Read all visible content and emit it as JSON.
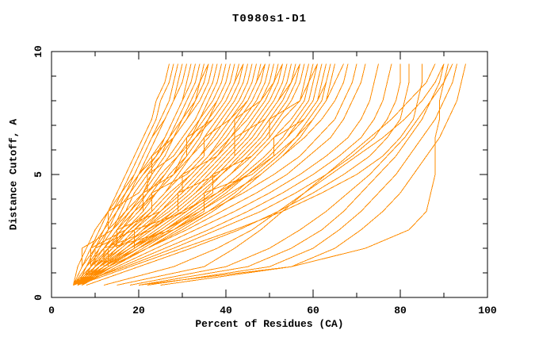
{
  "chart_data": {
    "type": "line",
    "title": "T0980s1-D1",
    "xlabel": "Percent of Residues (CA)",
    "ylabel": "Distance Cutoff, A",
    "xlim": [
      0,
      100
    ],
    "ylim": [
      0,
      10
    ],
    "grid": false,
    "legend": "none",
    "x_major_ticks": [
      0,
      20,
      40,
      60,
      80,
      100
    ],
    "x_minor_ticks": [
      10,
      30,
      50,
      70,
      90
    ],
    "y_major_ticks": [
      0,
      5,
      10
    ],
    "y_minor_ticks": [
      1,
      2,
      3,
      4,
      6,
      7,
      8,
      9
    ],
    "line_color": "#FF8C00",
    "axis_color": "#000000",
    "series_note": "Each series is one structure model; x = percent of CA residues fitting under each distance cutoff (cutoffs array = y values in Angstroms).",
    "cutoffs": [
      0.5,
      1.25,
      2.0,
      2.75,
      3.5,
      4.25,
      5.0,
      5.75,
      6.5,
      7.25,
      8.0,
      8.75,
      9.5
    ],
    "series": [
      [
        5,
        7,
        9,
        11,
        13,
        15,
        17,
        19,
        21,
        23,
        24,
        26,
        27
      ],
      [
        5,
        6,
        8,
        10,
        13,
        16,
        18,
        20,
        22,
        24,
        25,
        27,
        28
      ],
      [
        6,
        8,
        10,
        12,
        14,
        16,
        19,
        21,
        23,
        25,
        27,
        28,
        29
      ],
      [
        5,
        7,
        10,
        12,
        15,
        17,
        19,
        21,
        23,
        26,
        28,
        29,
        30
      ],
      [
        5,
        8,
        11,
        13,
        15,
        17,
        20,
        22,
        24,
        26,
        28,
        30,
        31
      ],
      [
        6,
        9,
        11,
        14,
        16,
        18,
        20,
        23,
        26,
        28,
        30,
        31,
        32
      ],
      [
        5,
        7,
        9,
        12,
        15,
        18,
        21,
        24,
        26,
        28,
        30,
        32,
        33
      ],
      [
        6,
        8,
        11,
        14,
        17,
        19,
        22,
        25,
        27,
        29,
        31,
        33,
        34
      ],
      [
        5,
        7,
        9,
        12,
        14,
        17,
        20,
        24,
        27,
        30,
        32,
        34,
        35
      ],
      [
        6,
        8,
        11,
        13,
        13,
        20,
        23,
        23,
        28,
        30,
        33,
        35,
        36
      ],
      [
        5,
        8,
        10,
        13,
        17,
        21,
        23,
        26,
        28,
        31,
        34,
        36,
        37
      ],
      [
        6,
        9,
        12,
        15,
        18,
        21,
        24,
        27,
        30,
        33,
        35,
        37,
        38
      ],
      [
        5,
        7,
        7,
        14,
        18,
        22,
        22,
        28,
        31,
        34,
        36,
        38,
        39
      ],
      [
        6,
        9,
        13,
        16,
        19,
        22,
        26,
        29,
        32,
        34,
        37,
        39,
        40
      ],
      [
        5,
        8,
        12,
        16,
        20,
        23,
        26,
        29,
        32,
        35,
        38,
        40,
        41
      ],
      [
        7,
        10,
        13,
        17,
        21,
        24,
        27,
        31,
        34,
        36,
        39,
        41,
        42
      ],
      [
        5,
        9,
        9,
        17,
        21,
        21,
        28,
        31,
        31,
        37,
        40,
        42,
        43
      ],
      [
        6,
        10,
        14,
        18,
        22,
        26,
        29,
        32,
        35,
        38,
        41,
        43,
        44
      ],
      [
        5,
        8,
        12,
        16,
        20,
        24,
        28,
        32,
        36,
        39,
        42,
        44,
        45
      ],
      [
        6,
        9,
        13,
        18,
        22,
        26,
        30,
        34,
        37,
        40,
        43,
        45,
        46
      ],
      [
        5,
        10,
        10,
        19,
        23,
        23,
        31,
        35,
        35,
        41,
        44,
        46,
        47
      ],
      [
        6,
        10,
        15,
        19,
        24,
        28,
        32,
        36,
        39,
        42,
        45,
        47,
        48
      ],
      [
        5,
        9,
        14,
        18,
        23,
        27,
        32,
        36,
        40,
        43,
        46,
        48,
        49
      ],
      [
        6,
        11,
        15,
        20,
        25,
        29,
        33,
        37,
        41,
        44,
        47,
        49,
        50
      ],
      [
        5,
        10,
        15,
        15,
        25,
        30,
        30,
        38,
        42,
        42,
        48,
        50,
        51
      ],
      [
        7,
        11,
        16,
        21,
        26,
        31,
        35,
        39,
        43,
        46,
        49,
        51,
        52
      ],
      [
        5,
        10,
        16,
        21,
        27,
        32,
        36,
        40,
        44,
        47,
        50,
        52,
        53
      ],
      [
        6,
        11,
        17,
        22,
        28,
        33,
        37,
        41,
        45,
        48,
        51,
        53,
        54
      ],
      [
        5,
        12,
        12,
        23,
        29,
        29,
        38,
        42,
        42,
        49,
        52,
        54,
        55
      ],
      [
        6,
        12,
        18,
        24,
        30,
        35,
        39,
        43,
        47,
        50,
        53,
        55,
        56
      ],
      [
        5,
        11,
        17,
        23,
        29,
        34,
        39,
        44,
        48,
        51,
        54,
        56,
        57
      ],
      [
        7,
        13,
        19,
        25,
        31,
        36,
        41,
        45,
        49,
        52,
        55,
        57,
        58
      ],
      [
        5,
        12,
        19,
        19,
        31,
        37,
        37,
        46,
        50,
        50,
        57,
        58,
        59
      ],
      [
        6,
        13,
        20,
        26,
        32,
        38,
        43,
        47,
        51,
        55,
        58,
        59,
        60
      ],
      [
        5,
        12,
        19,
        26,
        33,
        39,
        44,
        49,
        53,
        56,
        59,
        60,
        61
      ],
      [
        6,
        14,
        21,
        28,
        34,
        40,
        45,
        50,
        54,
        57,
        60,
        61,
        62
      ],
      [
        5,
        13,
        13,
        28,
        35,
        35,
        46,
        51,
        51,
        58,
        61,
        62,
        63
      ],
      [
        7,
        14,
        22,
        29,
        36,
        42,
        47,
        52,
        56,
        59,
        62,
        63,
        64
      ],
      [
        5,
        14,
        22,
        30,
        37,
        43,
        48,
        53,
        57,
        60,
        63,
        64,
        65
      ],
      [
        6,
        10,
        15,
        22,
        30,
        38,
        45,
        51,
        56,
        60,
        63,
        65,
        67
      ],
      [
        5,
        11,
        18,
        26,
        34,
        41,
        48,
        53,
        58,
        62,
        65,
        67,
        68
      ],
      [
        6,
        12,
        20,
        28,
        36,
        44,
        51,
        57,
        61,
        65,
        67,
        69,
        70
      ],
      [
        5,
        13,
        22,
        31,
        39,
        47,
        54,
        59,
        64,
        67,
        69,
        71,
        72
      ],
      [
        7,
        15,
        24,
        33,
        42,
        50,
        57,
        63,
        68,
        71,
        73,
        74,
        75
      ],
      [
        6,
        16,
        26,
        36,
        45,
        53,
        60,
        66,
        71,
        74,
        76,
        77,
        78
      ],
      [
        5,
        17,
        28,
        38,
        48,
        56,
        63,
        69,
        74,
        77,
        79,
        80,
        80
      ],
      [
        8,
        20,
        32,
        43,
        52,
        60,
        67,
        73,
        77,
        80,
        81,
        82,
        82
      ],
      [
        6,
        18,
        30,
        42,
        53,
        62,
        70,
        76,
        80,
        83,
        84,
        85,
        85
      ],
      [
        15,
        35,
        42,
        48,
        53,
        58,
        63,
        68,
        73,
        78,
        82,
        86,
        88
      ],
      [
        20,
        45,
        55,
        62,
        67,
        71,
        75,
        79,
        82,
        85,
        87,
        89,
        90
      ],
      [
        18,
        40,
        50,
        57,
        63,
        68,
        73,
        77,
        81,
        84,
        87,
        90,
        92
      ],
      [
        22,
        50,
        60,
        66,
        71,
        75,
        79,
        82,
        85,
        88,
        90,
        92,
        93
      ],
      [
        25,
        55,
        65,
        71,
        76,
        80,
        83,
        86,
        89,
        91,
        93,
        94,
        95
      ],
      [
        20,
        55,
        72,
        82,
        86,
        87,
        88,
        88,
        88,
        89,
        89,
        90,
        91
      ],
      [
        12,
        28,
        38,
        46,
        52,
        58,
        64,
        70,
        76,
        81,
        85,
        88,
        90
      ],
      [
        6,
        8,
        10,
        12,
        15,
        18,
        21,
        25,
        28,
        31,
        33,
        34,
        36
      ],
      [
        7,
        9,
        12,
        15,
        19,
        22,
        25,
        29,
        33,
        36,
        38,
        40,
        41
      ],
      [
        6,
        9,
        12,
        16,
        19,
        24,
        28,
        30,
        33,
        37,
        40,
        42,
        44
      ],
      [
        7,
        10,
        14,
        17,
        22,
        26,
        30,
        34,
        38,
        41,
        45,
        47,
        49
      ],
      [
        6,
        11,
        16,
        21,
        25,
        30,
        34,
        38,
        41,
        45,
        48,
        51,
        53
      ],
      [
        7,
        12,
        17,
        23,
        28,
        33,
        38,
        42,
        46,
        49,
        52,
        55,
        57
      ],
      [
        6,
        12,
        18,
        25,
        31,
        36,
        41,
        46,
        50,
        53,
        57,
        59,
        61
      ],
      [
        7,
        13,
        20,
        27,
        33,
        39,
        45,
        50,
        54,
        58,
        61,
        63,
        64
      ]
    ]
  }
}
